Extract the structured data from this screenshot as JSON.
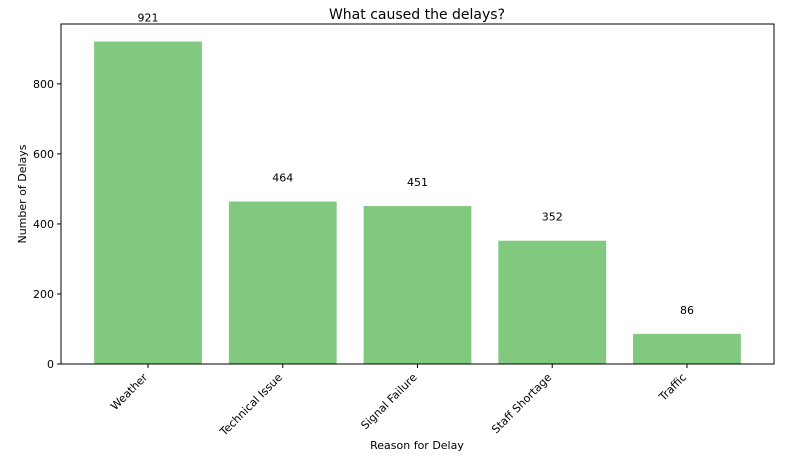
{
  "chart_data": {
    "type": "bar",
    "title": "What caused the delays?",
    "x_label": "Reason for Delay",
    "y_label": "Number of Delays",
    "categories": [
      "Weather",
      "Technical Issue",
      "Signal Failure",
      "Staff Shortage",
      "Traffic"
    ],
    "values": [
      921,
      464,
      451,
      352,
      86
    ],
    "color": "#80c97f",
    "ylim": [
      0,
      971
    ],
    "yticks": [
      0,
      200,
      400,
      600,
      800
    ],
    "grid": false
  }
}
